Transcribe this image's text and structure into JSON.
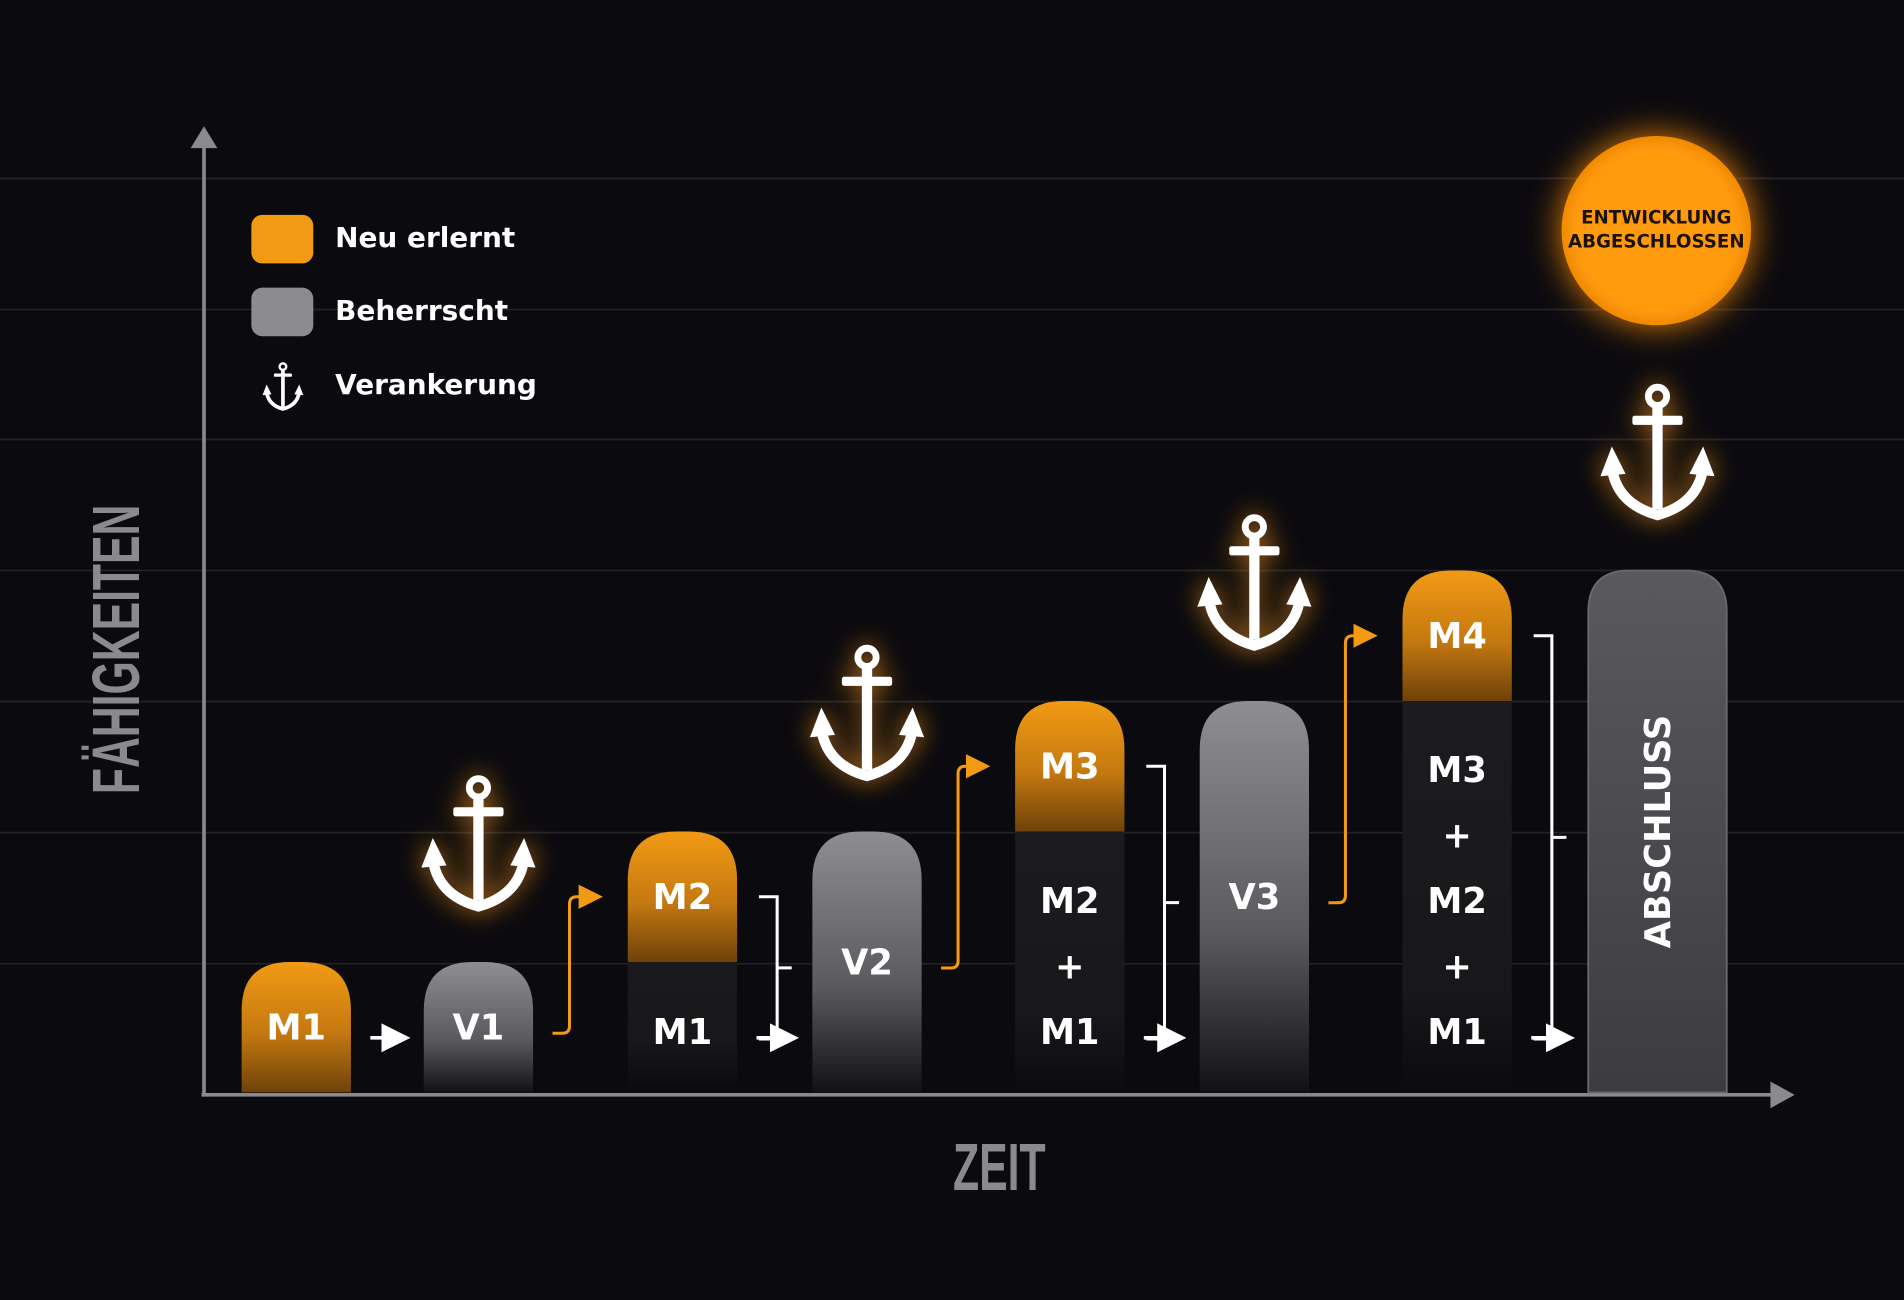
{
  "legend": [
    {
      "label": "Neu erlernt"
    },
    {
      "label": "Beherrscht"
    },
    {
      "label": "Verankerung"
    }
  ],
  "axes": {
    "y_label": "FÄHIGKEITEN",
    "x_label": "ZEIT"
  },
  "badge": {
    "lines": [
      "ENTWICKLUNG",
      "ABGESCHLOSSEN"
    ]
  },
  "columns": [
    {
      "new": "M1"
    },
    {
      "mastered": "V1"
    },
    {
      "new": "M2",
      "known": [
        "M1"
      ]
    },
    {
      "mastered": "V2"
    },
    {
      "new": "M3",
      "known": [
        "M2",
        "+",
        "M1"
      ]
    },
    {
      "mastered": "V3"
    },
    {
      "new": "M4",
      "known": [
        "M3",
        "+",
        "M2",
        "+",
        "M1"
      ]
    },
    {
      "mastered": "ABSCHLUSS"
    }
  ]
}
